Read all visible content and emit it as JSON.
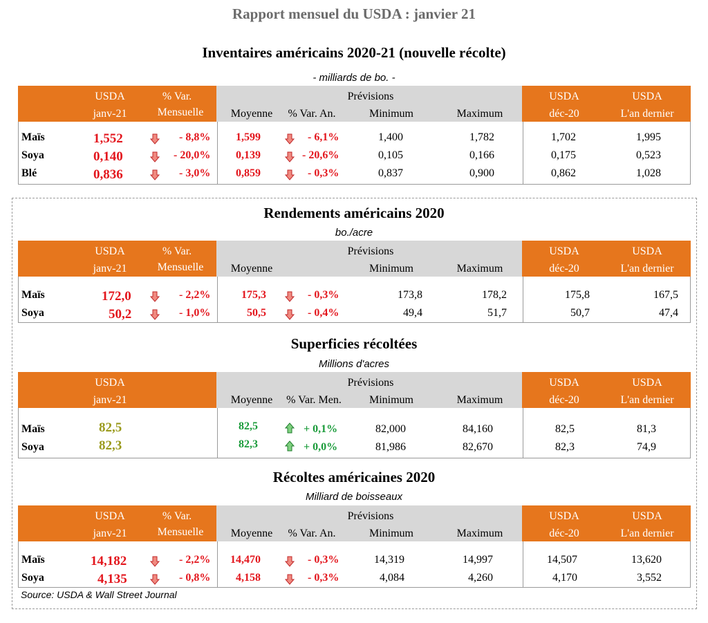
{
  "title": "Rapport mensuel du USDA : janvier 21",
  "headers": {
    "usda": "USDA",
    "janv": "janv-21",
    "var_label": "% Var.",
    "mensuelle": "Mensuelle",
    "previsions": "Prévisions",
    "moyenne": "Moyenne",
    "var_an": "% Var. An.",
    "var_men": "% Var. Men.",
    "minimum": "Minimum",
    "maximum": "Maximum",
    "dec": "déc-20",
    "last_year": "L'an dernier"
  },
  "colors": {
    "orange": "#e6761d",
    "grey": "#d7d7d7",
    "red": "#e3161d",
    "green": "#1a9b3a",
    "olive": "#9a9a1c"
  },
  "sections": {
    "inventaires": {
      "title": "Inventaires américains 2020-21 (nouvelle récolte)",
      "unit": "- milliards de bo. -",
      "rows": [
        {
          "name": "Maïs",
          "usda": "1,552",
          "var": "- 8,8%",
          "moy": "1,599",
          "var2": "- 6,1%",
          "min": "1,400",
          "max": "1,782",
          "dec": "1,702",
          "last": "1,995"
        },
        {
          "name": "Soya",
          "usda": "0,140",
          "var": "- 20,0%",
          "moy": "0,139",
          "var2": "- 20,6%",
          "min": "0,105",
          "max": "0,166",
          "dec": "0,175",
          "last": "0,523"
        },
        {
          "name": "Blé",
          "usda": "0,836",
          "var": "- 3,0%",
          "moy": "0,859",
          "var2": "- 0,3%",
          "min": "0,837",
          "max": "0,900",
          "dec": "0,862",
          "last": "1,028"
        }
      ]
    },
    "rendements": {
      "title": "Rendements américains 2020",
      "unit": "bo./acre",
      "rows": [
        {
          "name": "Maïs",
          "usda": "172,0",
          "var": "- 2,2%",
          "moy": "175,3",
          "var2": "- 0,3%",
          "min": "173,8",
          "max": "178,2",
          "dec": "175,8",
          "last": "167,5"
        },
        {
          "name": "Soya",
          "usda": "50,2",
          "var": "- 1,0%",
          "moy": "50,5",
          "var2": "- 0,4%",
          "min": "49,4",
          "max": "51,7",
          "dec": "50,7",
          "last": "47,4"
        }
      ]
    },
    "superficies": {
      "title": "Superficies récoltées",
      "unit": "Millions d'acres",
      "rows": [
        {
          "name": "Maïs",
          "usda": "82,5",
          "moy": "82,5",
          "var2": "+ 0,1%",
          "min": "82,000",
          "max": "84,160",
          "dec": "82,5",
          "last": "81,3"
        },
        {
          "name": "Soya",
          "usda": "82,3",
          "moy": "82,3",
          "var2": "+ 0,0%",
          "min": "81,986",
          "max": "82,670",
          "dec": "82,3",
          "last": "74,9"
        }
      ]
    },
    "recoltes": {
      "title": "Récoltes américaines 2020",
      "unit": "Milliard de boisseaux",
      "rows": [
        {
          "name": "Maïs",
          "usda": "14,182",
          "var": "- 2,2%",
          "moy": "14,470",
          "var2": "- 0,3%",
          "min": "14,319",
          "max": "14,997",
          "dec": "14,507",
          "last": "13,620"
        },
        {
          "name": "Soya",
          "usda": "4,135",
          "var": "- 0,8%",
          "moy": "4,158",
          "var2": "- 0,3%",
          "min": "4,084",
          "max": "4,260",
          "dec": "4,170",
          "last": "3,552"
        }
      ]
    }
  },
  "source": "Source: USDA & Wall Street Journal"
}
